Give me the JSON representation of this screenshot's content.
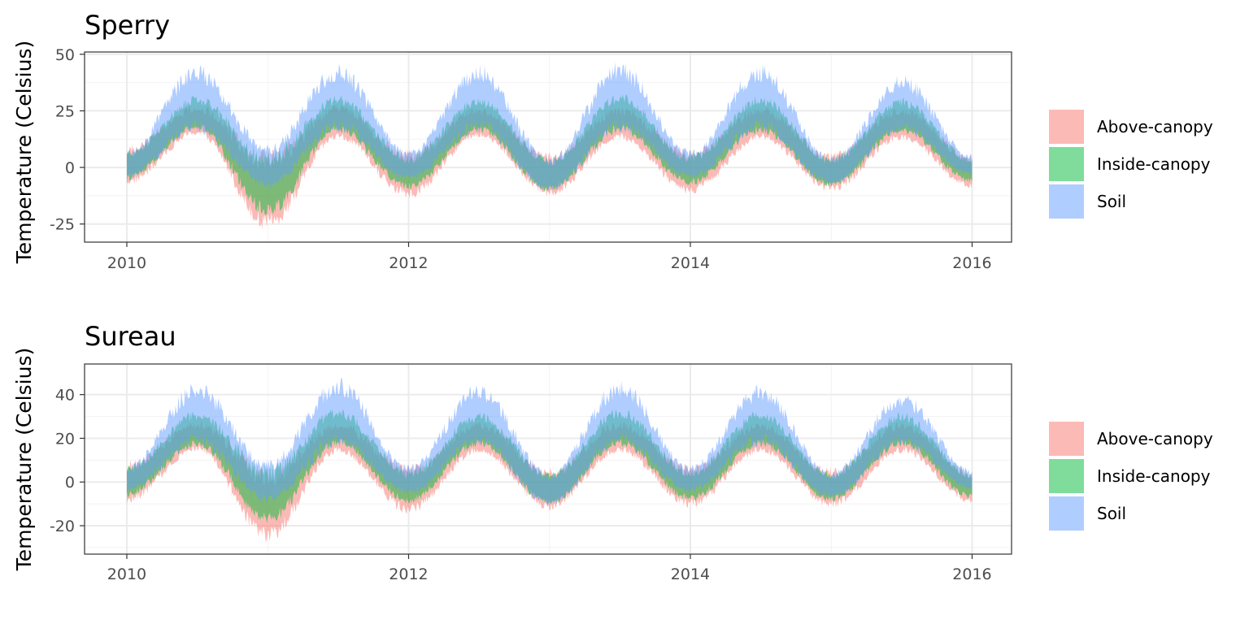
{
  "chart_data": [
    {
      "type": "area",
      "title": "Sperry",
      "xlabel": "",
      "ylabel": "Temperature (Celsius)",
      "x_ticks": [
        "2010",
        "2012",
        "2014",
        "2016"
      ],
      "x_tick_values": [
        2010,
        2012,
        2014,
        2016
      ],
      "y_ticks": [
        "-25",
        "0",
        "25",
        "50"
      ],
      "y_tick_values": [
        -25,
        0,
        25,
        50
      ],
      "xlim": [
        2009.7,
        2016.28
      ],
      "ylim": [
        -33,
        51
      ],
      "grid": true,
      "legend_position": "right",
      "series": [
        {
          "name": "Above-canopy",
          "color": "#F8766D",
          "opacity": 0.5,
          "x": [
            "2010-01",
            "2010-07",
            "2011-01",
            "2011-07",
            "2012-01",
            "2012-07",
            "2013-01",
            "2013-07",
            "2014-01",
            "2014-07",
            "2015-01",
            "2015-07",
            "2016-01"
          ],
          "min": [
            -8,
            14,
            -28,
            12,
            -14,
            13,
            -13,
            12,
            -12,
            12,
            -11,
            12,
            -10
          ],
          "max": [
            10,
            28,
            8,
            28,
            8,
            27,
            7,
            27,
            8,
            27,
            7,
            27,
            6
          ]
        },
        {
          "name": "Inside-canopy",
          "color": "#00BA38",
          "opacity": 0.5,
          "x": [
            "2010-01",
            "2010-07",
            "2011-01",
            "2011-07",
            "2012-01",
            "2012-07",
            "2013-01",
            "2013-07",
            "2014-01",
            "2014-07",
            "2015-01",
            "2015-07",
            "2016-01"
          ],
          "min": [
            -6,
            16,
            -22,
            15,
            -10,
            15,
            -11,
            15,
            -8,
            15,
            -9,
            15,
            -7
          ],
          "max": [
            8,
            32,
            8,
            32,
            6,
            31,
            5,
            33,
            6,
            32,
            5,
            31,
            5
          ]
        },
        {
          "name": "Soil",
          "color": "#619CFF",
          "opacity": 0.5,
          "x": [
            "2010-01",
            "2010-07",
            "2011-01",
            "2011-07",
            "2012-01",
            "2012-07",
            "2013-01",
            "2013-07",
            "2014-01",
            "2014-07",
            "2015-01",
            "2015-07",
            "2016-01"
          ],
          "min": [
            -5,
            15,
            -10,
            15,
            -6,
            15,
            -11,
            15,
            -5,
            15,
            -8,
            15,
            -4
          ],
          "max": [
            8,
            46,
            10,
            46,
            8,
            46,
            5,
            47,
            8,
            46,
            5,
            41,
            6
          ]
        }
      ]
    },
    {
      "type": "area",
      "title": "Sureau",
      "xlabel": "",
      "ylabel": "Temperature (Celsius)",
      "x_ticks": [
        "2010",
        "2012",
        "2014",
        "2016"
      ],
      "x_tick_values": [
        2010,
        2012,
        2014,
        2016
      ],
      "y_ticks": [
        "-20",
        "0",
        "20",
        "40"
      ],
      "y_tick_values": [
        -20,
        0,
        20,
        40
      ],
      "xlim": [
        2009.7,
        2016.28
      ],
      "ylim": [
        -33,
        54
      ],
      "grid": true,
      "legend_position": "right",
      "series": [
        {
          "name": "Above-canopy",
          "color": "#F8766D",
          "opacity": 0.5,
          "x": [
            "2010-01",
            "2010-07",
            "2011-01",
            "2011-07",
            "2012-01",
            "2012-07",
            "2013-01",
            "2013-07",
            "2014-01",
            "2014-07",
            "2015-01",
            "2015-07",
            "2016-01"
          ],
          "min": [
            -10,
            14,
            -28,
            13,
            -15,
            13,
            -13,
            13,
            -12,
            13,
            -12,
            13,
            -10
          ],
          "max": [
            10,
            28,
            8,
            28,
            8,
            28,
            7,
            28,
            8,
            28,
            7,
            28,
            6
          ]
        },
        {
          "name": "Inside-canopy",
          "color": "#00BA38",
          "opacity": 0.5,
          "x": [
            "2010-01",
            "2010-07",
            "2011-01",
            "2011-07",
            "2012-01",
            "2012-07",
            "2013-01",
            "2013-07",
            "2014-01",
            "2014-07",
            "2015-01",
            "2015-07",
            "2016-01"
          ],
          "min": [
            -7,
            16,
            -20,
            16,
            -10,
            16,
            -11,
            16,
            -9,
            16,
            -9,
            16,
            -8
          ],
          "max": [
            8,
            33,
            8,
            34,
            6,
            32,
            5,
            34,
            6,
            33,
            5,
            32,
            5
          ]
        },
        {
          "name": "Soil",
          "color": "#619CFF",
          "opacity": 0.5,
          "x": [
            "2010-01",
            "2010-07",
            "2011-01",
            "2011-07",
            "2012-01",
            "2012-07",
            "2013-01",
            "2013-07",
            "2014-01",
            "2014-07",
            "2015-01",
            "2015-07",
            "2016-01"
          ],
          "min": [
            -5,
            16,
            -10,
            16,
            -6,
            16,
            -11,
            16,
            -5,
            16,
            -8,
            16,
            -4
          ],
          "max": [
            8,
            46,
            10,
            48,
            8,
            45,
            5,
            47,
            8,
            45,
            5,
            41,
            6
          ]
        }
      ]
    }
  ]
}
